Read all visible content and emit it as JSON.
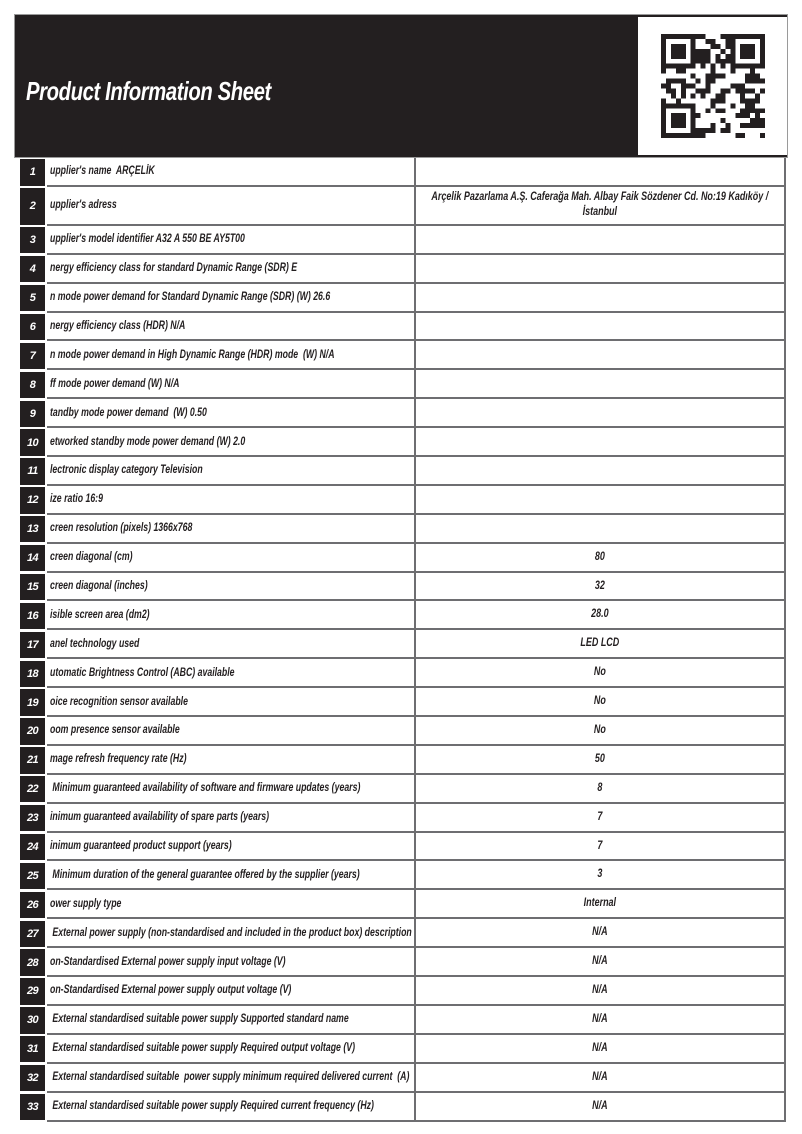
{
  "page": {
    "title": "Product Information Sheet"
  },
  "header": {
    "qr_icon": "qr-code"
  },
  "colors": {
    "band": "#231f20",
    "grid": "#6e6e71",
    "text": "#231f20",
    "title_text": "#ffffff"
  },
  "table": {
    "rows": [
      {
        "num": "1",
        "label": "upplier's name  ARÇELİK",
        "value": ""
      },
      {
        "num": "2",
        "label": "upplier's adress",
        "value": "Arçelik Pazarlama A.Ş. Caferağa Mah. Albay Faik Sözdener Cd. No:19 Kadıköy / İstanbul"
      },
      {
        "num": "3",
        "label": "upplier's model identifier A32 A 550 BE AY5T00",
        "value": ""
      },
      {
        "num": "4",
        "label": "nergy efficiency class for standard Dynamic Range (SDR) E",
        "value": ""
      },
      {
        "num": "5",
        "label": "n mode power demand for Standard Dynamic Range (SDR) (W) 26.6",
        "value": ""
      },
      {
        "num": "6",
        "label": "nergy efficiency class (HDR) N/A",
        "value": ""
      },
      {
        "num": "7",
        "label": "n mode power demand in High Dynamic Range (HDR) mode  (W) N/A",
        "value": ""
      },
      {
        "num": "8",
        "label": "ff mode power demand (W) N/A",
        "value": ""
      },
      {
        "num": "9",
        "label": "tandby mode power demand  (W) 0.50",
        "value": ""
      },
      {
        "num": "10",
        "label": "etworked standby mode power demand (W) 2.0",
        "value": ""
      },
      {
        "num": "11",
        "label": "lectronic display category Television",
        "value": ""
      },
      {
        "num": "12",
        "label": "ize ratio 16:9",
        "value": ""
      },
      {
        "num": "13",
        "label": "creen resolution (pixels) 1366x768",
        "value": ""
      },
      {
        "num": "14",
        "label": "creen diagonal (cm)",
        "value": "80"
      },
      {
        "num": "15",
        "label": "creen diagonal (inches)",
        "value": "32"
      },
      {
        "num": "16",
        "label": "isible screen area (dm2)",
        "value": "28.0"
      },
      {
        "num": "17",
        "label": "anel technology used",
        "value": "LED LCD"
      },
      {
        "num": "18",
        "label": "utomatic Brightness Control (ABC) available",
        "value": "No"
      },
      {
        "num": "19",
        "label": "oice recognition sensor available",
        "value": "No"
      },
      {
        "num": "20",
        "label": "oom presence sensor available",
        "value": "No"
      },
      {
        "num": "21",
        "label": "mage refresh frequency rate (Hz)",
        "value": "50"
      },
      {
        "num": "22",
        "label": " Minimum guaranteed availability of software and firmware updates (years)",
        "value": "8"
      },
      {
        "num": "23",
        "label": "inimum guaranteed availability of spare parts (years)",
        "value": "7"
      },
      {
        "num": "24",
        "label": "inimum guaranteed product support (years)",
        "value": "7"
      },
      {
        "num": "25",
        "label": " Minimum duration of the general guarantee offered by the supplier (years)",
        "value": "3"
      },
      {
        "num": "26",
        "label": "ower supply type",
        "value": "Internal"
      },
      {
        "num": "27",
        "label": " External power supply (non-standardised and included in the product box) description",
        "value": "N/A"
      },
      {
        "num": "28",
        "label": "on-Standardised External power supply input voltage (V)",
        "value": "N/A"
      },
      {
        "num": "29",
        "label": "on-Standardised External power supply output voltage (V)",
        "value": "N/A"
      },
      {
        "num": "30",
        "label": " External standardised suitable power supply Supported standard name",
        "value": "N/A"
      },
      {
        "num": "31",
        "label": " External standardised suitable power supply Required output voltage (V)",
        "value": "N/A"
      },
      {
        "num": "32",
        "label": " External standardised suitable  power supply minimum required delivered current  (A)",
        "value": "N/A"
      },
      {
        "num": "33",
        "label": " External standardised suitable power supply Required current frequency (Hz)",
        "value": "N/A"
      }
    ]
  }
}
